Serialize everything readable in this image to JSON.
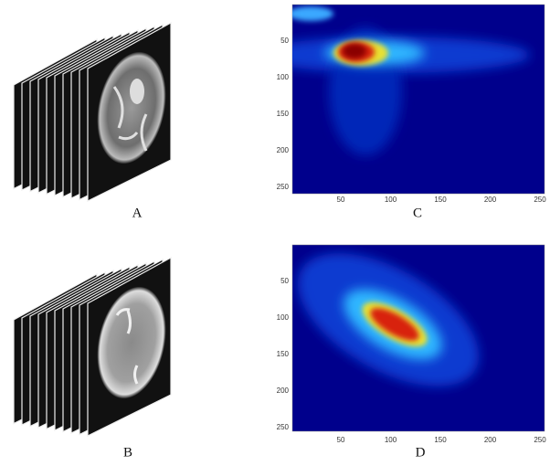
{
  "panels": [
    {
      "label": "A"
    },
    {
      "label": "C",
      "xticks": [
        50,
        100,
        150,
        200,
        250
      ],
      "yticks": [
        50,
        100,
        150,
        200,
        250
      ]
    },
    {
      "label": "B"
    },
    {
      "label": "D",
      "xticks": [
        50,
        100,
        150,
        200,
        250
      ],
      "yticks": [
        50,
        100,
        150,
        200,
        250
      ]
    }
  ]
}
